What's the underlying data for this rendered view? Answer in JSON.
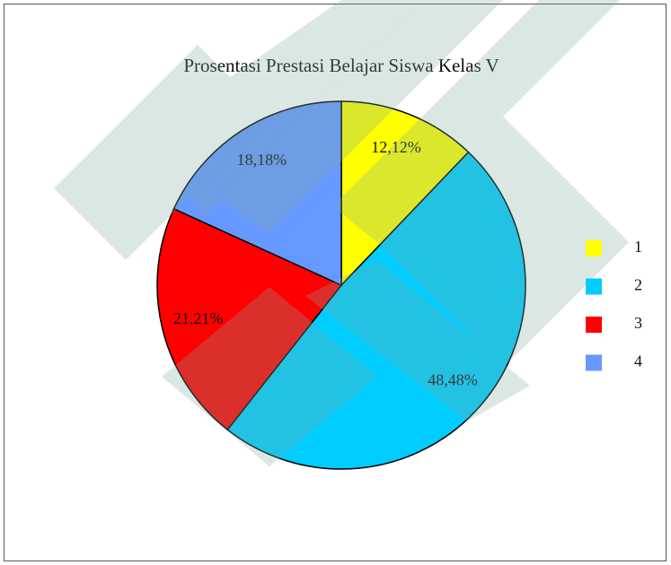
{
  "chart_data": {
    "type": "pie",
    "title": "Prosentasi Prestasi Belajar Siswa Kelas V",
    "categories": [
      "1",
      "2",
      "3",
      "4"
    ],
    "values": [
      12.12,
      48.48,
      21.21,
      18.18
    ],
    "value_labels": [
      "12,12%",
      "48,48%",
      "21,21%",
      "18,18%"
    ],
    "colors": [
      "#ffff00",
      "#00ccff",
      "#ff0000",
      "#6699ff"
    ],
    "legend": "right"
  }
}
